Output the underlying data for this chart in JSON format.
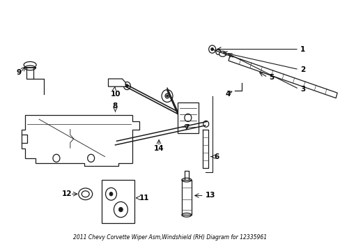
{
  "title": "2011 Chevy Corvette Wiper Asm,Windshield (RH) Diagram for 12335961",
  "bg_color": "#ffffff",
  "line_color": "#1a1a1a",
  "text_color": "#000000",
  "fig_width": 4.89,
  "fig_height": 3.6,
  "dpi": 100
}
